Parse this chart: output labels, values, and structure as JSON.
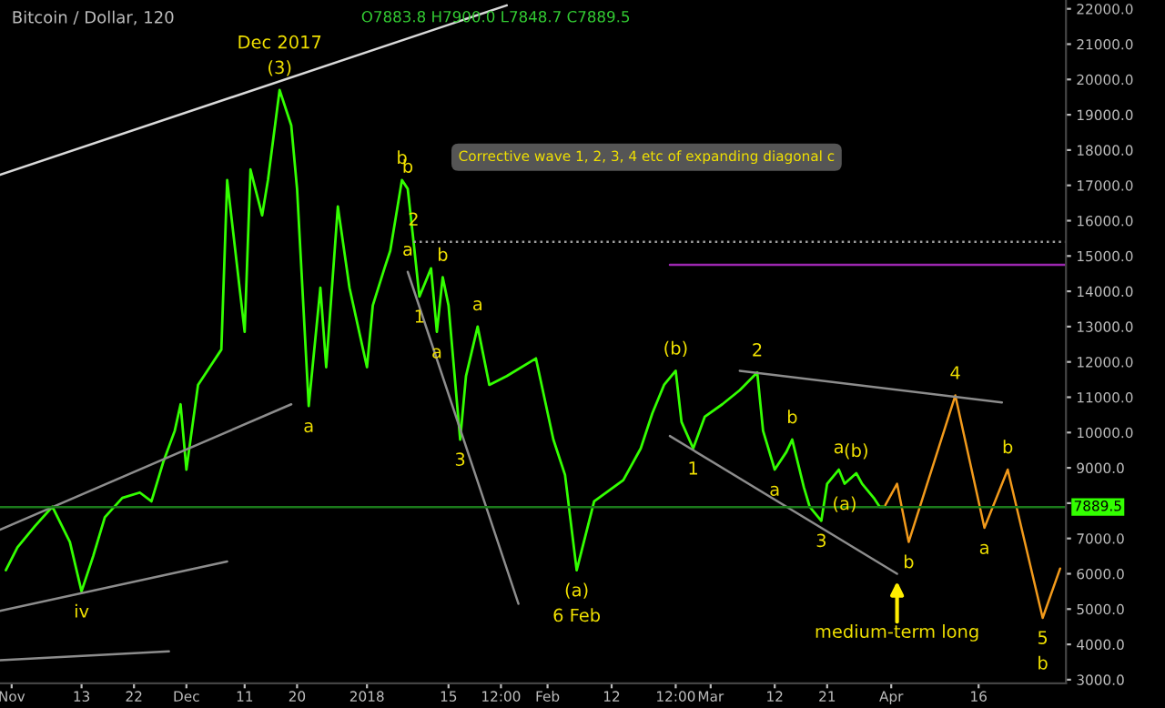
{
  "chart_data": {
    "type": "line",
    "title": "Bitcoin / Dollar, 120",
    "subtitle": "O7883.8 H7900.0 L7848.7 C7889.5",
    "xlim": [
      "2017-10-30",
      "2018-05-01"
    ],
    "ylim": [
      2900,
      22250
    ],
    "xticks": [
      {
        "value": "2017-11-01",
        "label": "Nov"
      },
      {
        "value": "2017-11-13",
        "label": "13"
      },
      {
        "value": "2017-11-22",
        "label": "22"
      },
      {
        "value": "2017-12-01",
        "label": "Dec"
      },
      {
        "value": "2017-12-11",
        "label": "11"
      },
      {
        "value": "2017-12-20",
        "label": "20"
      },
      {
        "value": "2018-01-01",
        "label": "2018"
      },
      {
        "value": "2018-01-15",
        "label": "15"
      },
      {
        "value": "2018-01-24",
        "label": "12:00"
      },
      {
        "value": "2018-02-01",
        "label": "Feb"
      },
      {
        "value": "2018-02-12",
        "label": "12"
      },
      {
        "value": "2018-02-23",
        "label": "12:00"
      },
      {
        "value": "2018-03-01",
        "label": "Mar"
      },
      {
        "value": "2018-03-12",
        "label": "12"
      },
      {
        "value": "2018-03-21",
        "label": "21"
      },
      {
        "value": "2018-04-01",
        "label": "Apr"
      },
      {
        "value": "2018-04-16",
        "label": "16"
      }
    ],
    "yticks": [
      {
        "value": 3000,
        "label": "3000.0"
      },
      {
        "value": 4000,
        "label": "4000.0"
      },
      {
        "value": 5000,
        "label": "5000.0"
      },
      {
        "value": 6000,
        "label": "6000.0"
      },
      {
        "value": 7000,
        "label": "7000.0"
      },
      {
        "value": 8000,
        "label": null
      },
      {
        "value": 9000,
        "label": "9000.0"
      },
      {
        "value": 10000,
        "label": "10000.0"
      },
      {
        "value": 11000,
        "label": "11000.0"
      },
      {
        "value": 12000,
        "label": "12000.0"
      },
      {
        "value": 13000,
        "label": "13000.0"
      },
      {
        "value": 14000,
        "label": "14000.0"
      },
      {
        "value": 15000,
        "label": "15000.0"
      },
      {
        "value": 16000,
        "label": "16000.0"
      },
      {
        "value": 17000,
        "label": "17000.0"
      },
      {
        "value": 18000,
        "label": "18000.0"
      },
      {
        "value": 19000,
        "label": "19000.0"
      },
      {
        "value": 20000,
        "label": "20000.0"
      },
      {
        "value": 21000,
        "label": "21000.0"
      },
      {
        "value": 22000,
        "label": "22000.0"
      }
    ],
    "grid": false,
    "line_style": "solid",
    "series": [
      {
        "color": "#33ff00",
        "x": [
          "2017-10-31",
          "2017-11-02",
          "2017-11-05",
          "2017-11-08",
          "2017-11-11",
          "2017-11-13",
          "2017-11-15",
          "2017-11-17",
          "2017-11-20",
          "2017-11-23",
          "2017-11-25",
          "2017-11-27",
          "2017-11-29",
          "2017-11-30",
          "2017-12-01",
          "2017-12-03",
          "2017-12-05",
          "2017-12-07",
          "2017-12-08",
          "2017-12-11",
          "2017-12-12",
          "2017-12-14",
          "2017-12-15",
          "2017-12-17",
          "2017-12-19",
          "2017-12-20",
          "2017-12-22",
          "2017-12-24",
          "2017-12-25",
          "2017-12-27",
          "2017-12-29",
          "2018-01-01",
          "2018-01-02",
          "2018-01-04",
          "2018-01-05",
          "2018-01-07",
          "2018-01-08",
          "2018-01-09",
          "2018-01-10",
          "2018-01-12",
          "2018-01-13",
          "2018-01-14",
          "2018-01-15",
          "2018-01-17",
          "2018-01-18",
          "2018-01-20",
          "2018-01-22",
          "2018-01-25",
          "2018-01-30",
          "2018-02-02",
          "2018-02-04",
          "2018-02-06",
          "2018-02-09",
          "2018-02-14",
          "2018-02-17",
          "2018-02-19",
          "2018-02-21",
          "2018-02-23",
          "2018-02-24",
          "2018-02-26",
          "2018-02-28",
          "2018-03-03",
          "2018-03-06",
          "2018-03-09",
          "2018-03-10",
          "2018-03-12",
          "2018-03-14",
          "2018-03-15",
          "2018-03-17",
          "2018-03-18",
          "2018-03-20",
          "2018-03-21",
          "2018-03-23",
          "2018-03-24",
          "2018-03-26",
          "2018-03-27",
          "2018-03-29",
          "2018-03-30",
          "2018-03-31"
        ],
        "values": [
          6100,
          6750,
          7350,
          7900,
          6900,
          5500,
          6500,
          7600,
          8150,
          8300,
          8050,
          9150,
          10050,
          10800,
          8950,
          11350,
          11850,
          12350,
          17150,
          12850,
          17450,
          16150,
          17150,
          19700,
          18700,
          16900,
          10750,
          14100,
          11850,
          16400,
          14100,
          11850,
          13600,
          14650,
          15150,
          17150,
          16900,
          15400,
          13850,
          14650,
          12850,
          14400,
          13600,
          9800,
          11600,
          13000,
          11350,
          11600,
          12100,
          9800,
          8800,
          6100,
          8050,
          8650,
          9550,
          10550,
          11350,
          11750,
          10300,
          9550,
          10450,
          10800,
          11200,
          11700,
          10050,
          8950,
          9450,
          9800,
          8450,
          7900,
          7500,
          8550,
          8950,
          8550,
          8850,
          8550,
          8150,
          7900,
          7900
        ]
      },
      {
        "color": "#f29a1b",
        "x": [
          "2018-03-31",
          "2018-04-02",
          "2018-04-04",
          "2018-04-12",
          "2018-04-17",
          "2018-04-21",
          "2018-04-27",
          "2018-04-30"
        ],
        "values": [
          7950,
          8550,
          6900,
          11050,
          7300,
          8950,
          4750,
          6150
        ]
      },
      {
        "color": "#d9d9d9",
        "x": [
          "2017-10-30",
          "2018-01-25"
        ],
        "values": [
          17300,
          22100
        ]
      },
      {
        "color": "#8c8c8c",
        "x": [
          "2017-10-30",
          "2017-12-19"
        ],
        "values": [
          7250,
          10800
        ]
      },
      {
        "color": "#8c8c8c",
        "x": [
          "2017-10-30",
          "2017-12-08"
        ],
        "values": [
          4950,
          6350
        ]
      },
      {
        "color": "#8c8c8c",
        "x": [
          "2017-10-30",
          "2017-11-28"
        ],
        "values": [
          3550,
          3800
        ]
      },
      {
        "color": "#8c8c8c",
        "x": [
          "2018-01-08",
          "2018-01-27"
        ],
        "values": [
          14550,
          5150
        ]
      },
      {
        "color": "#9e9e9e",
        "line_style": "dotted",
        "x": [
          "2018-01-09",
          "2018-05-01"
        ],
        "values": [
          15400,
          15400
        ]
      },
      {
        "color": "#9c27b0",
        "x": [
          "2018-02-22",
          "2018-05-01"
        ],
        "values": [
          14750,
          14750
        ]
      },
      {
        "color": "#8c8c8c",
        "x": [
          "2018-03-06",
          "2018-04-20"
        ],
        "values": [
          11750,
          10850
        ]
      },
      {
        "color": "#8c8c8c",
        "x": [
          "2018-02-22",
          "2018-04-02"
        ],
        "values": [
          9900,
          6000
        ]
      }
    ],
    "ref_lines": [
      {
        "axis": "y",
        "value": 7889.5,
        "label": "7889.5",
        "color": "#1b7a1b"
      }
    ],
    "annotations": [
      {
        "text": "Dec 2017",
        "x": "2017-12-17",
        "y": 19700
      },
      {
        "text": "(3)",
        "x": "2017-12-17",
        "y": 19700
      },
      {
        "text": "a",
        "x": "2017-12-22",
        "y": 10750
      },
      {
        "text": "b",
        "x": "2018-01-07",
        "y": 17150
      },
      {
        "text": "b",
        "x": "2018-01-08",
        "y": 16900
      },
      {
        "text": "2",
        "x": "2018-01-09",
        "y": 15400
      },
      {
        "text": "a",
        "x": "2018-01-08",
        "y": 14550
      },
      {
        "text": "b",
        "x": "2018-01-14",
        "y": 14400
      },
      {
        "text": "1",
        "x": "2018-01-10",
        "y": 13850
      },
      {
        "text": "a",
        "x": "2018-01-13",
        "y": 12850
      },
      {
        "text": "a",
        "x": "2018-01-20",
        "y": 13000
      },
      {
        "text": "3",
        "x": "2018-01-17",
        "y": 9800
      },
      "Corrective wave 1, 2, 3, 4 etc of expanding diagonal c",
      {
        "text": "iv",
        "x": "2017-11-13",
        "y": 5500
      },
      {
        "text": "(a)",
        "x": "2018-02-06",
        "y": 6100
      },
      {
        "text": "6 Feb",
        "x": "2018-02-06",
        "y": 6100
      },
      {
        "text": "(b)",
        "x": "2018-02-23",
        "y": 11750
      },
      {
        "text": "2",
        "x": "2018-03-09",
        "y": 11700
      },
      {
        "text": "1",
        "x": "2018-02-26",
        "y": 9550
      },
      {
        "text": "b",
        "x": "2018-03-15",
        "y": 9800
      },
      {
        "text": "a",
        "x": "2018-03-12",
        "y": 8950
      },
      {
        "text": "3",
        "x": "2018-03-20",
        "y": 7500
      },
      {
        "text": "a",
        "x": "2018-03-23",
        "y": 8950
      },
      {
        "text": "(b)",
        "x": "2018-03-26",
        "y": 8850
      },
      {
        "text": "(a)",
        "x": "2018-03-24",
        "y": 8550
      },
      {
        "text": "b",
        "x": "2018-04-04",
        "y": 6900
      },
      {
        "text": "4",
        "x": "2018-04-12",
        "y": 11050
      },
      {
        "text": "a",
        "x": "2018-04-17",
        "y": 7300
      },
      {
        "text": "b",
        "x": "2018-04-21",
        "y": 8950
      },
      {
        "text": "5",
        "x": "2018-04-27",
        "y": 4750
      },
      {
        "text": "b",
        "x": "2018-04-27",
        "y": 4750
      },
      {
        "text": "medium-term long",
        "x": "2018-04-02",
        "y": 6000
      }
    ]
  }
}
